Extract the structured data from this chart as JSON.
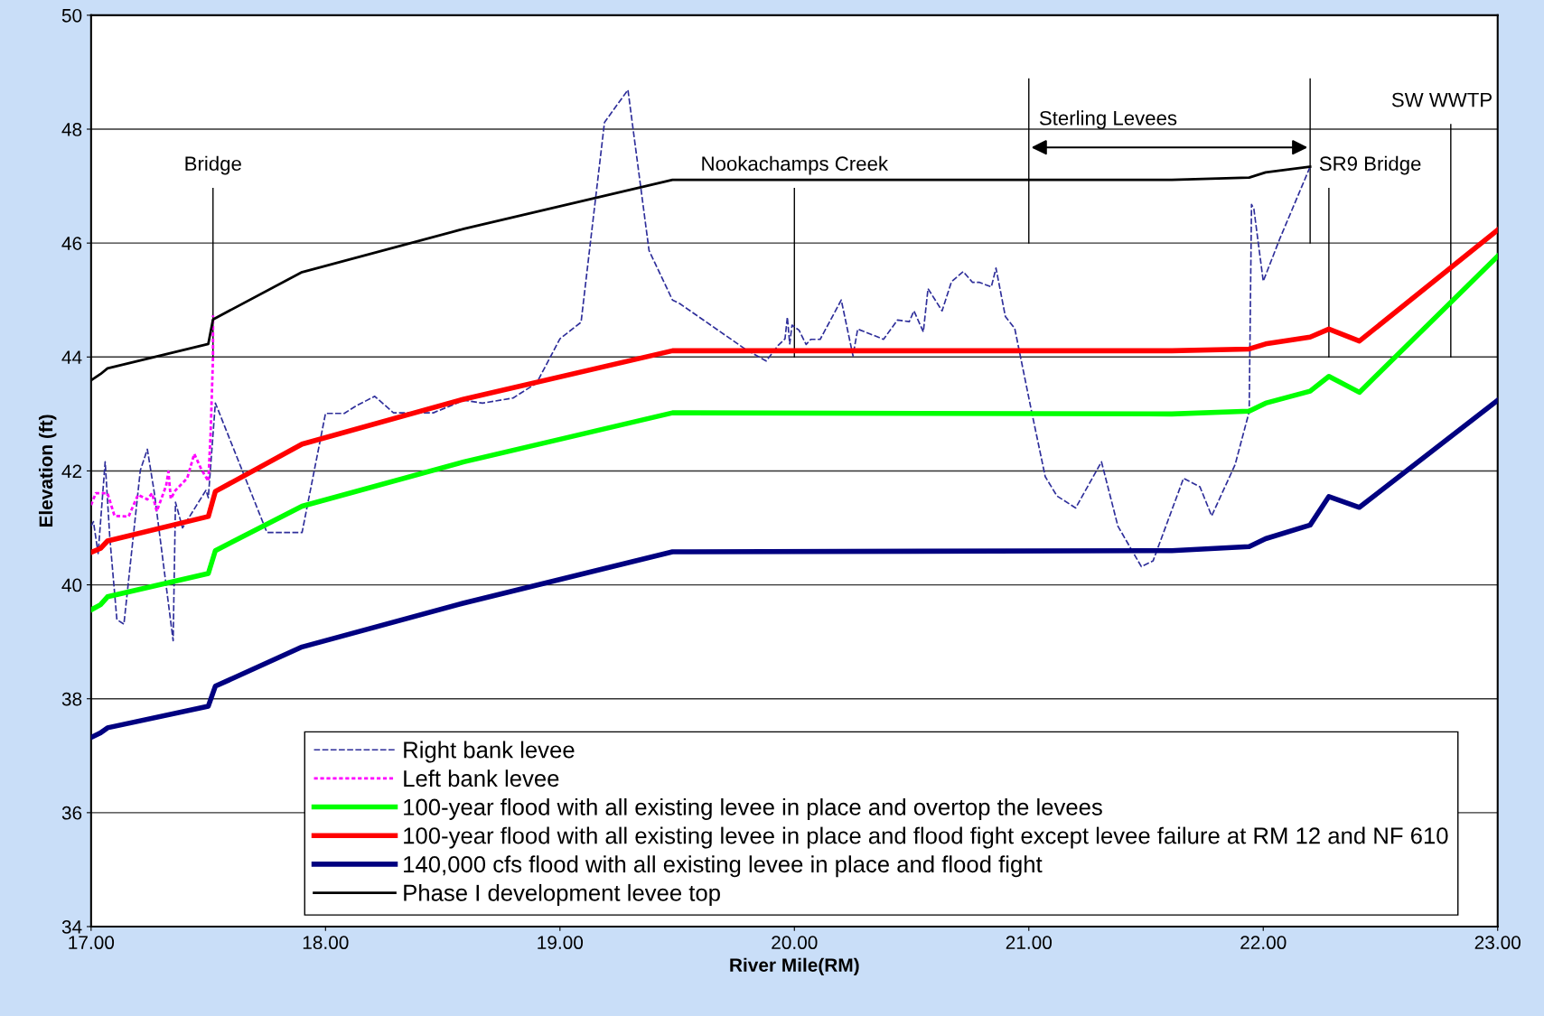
{
  "chart_data": {
    "type": "line",
    "xlabel": "River Mile(RM)",
    "ylabel": "Elevation (ft)",
    "xlim": [
      17,
      23
    ],
    "ylim": [
      34,
      50
    ],
    "xticks": [
      {
        "value": 17,
        "label": "17.00"
      },
      {
        "value": 18,
        "label": "18.00"
      },
      {
        "value": 19,
        "label": "19.00"
      },
      {
        "value": 20,
        "label": "20.00"
      },
      {
        "value": 21,
        "label": "21.00"
      },
      {
        "value": 22,
        "label": "22.00"
      },
      {
        "value": 23,
        "label": "23.00"
      }
    ],
    "yticks": [
      34,
      36,
      38,
      40,
      42,
      44,
      46,
      48,
      50
    ],
    "grid": "y",
    "legend": "bottom right",
    "marker": "none",
    "series": [
      {
        "name": "Right bank levee",
        "color": "#2e2e9a",
        "line_style": "dashed",
        "x": [
          17.0,
          17.01,
          17.03,
          17.06,
          17.08,
          17.11,
          17.14,
          17.21,
          17.24,
          17.27,
          17.35,
          17.36,
          17.39,
          17.49,
          17.5,
          17.53,
          17.54,
          17.75,
          17.9,
          18.0,
          18.08,
          18.13,
          18.21,
          18.29,
          18.46,
          18.59,
          18.67,
          18.8,
          18.9,
          19.0,
          19.09,
          19.19,
          19.29,
          19.38,
          19.48,
          19.51,
          19.79,
          19.88,
          19.93,
          19.96,
          19.97,
          19.98,
          19.99,
          20.02,
          20.05,
          20.07,
          20.11,
          20.2,
          20.25,
          20.27,
          20.32,
          20.38,
          20.44,
          20.49,
          20.51,
          20.55,
          20.57,
          20.63,
          20.67,
          20.72,
          20.76,
          20.79,
          20.84,
          20.86,
          20.9,
          20.94,
          21.01,
          21.07,
          21.12,
          21.2,
          21.31,
          21.38,
          21.48,
          21.53,
          21.66,
          21.73,
          21.78,
          21.88,
          21.94,
          21.95,
          21.96,
          22.0,
          22.07,
          22.2
        ],
        "values": [
          41.03,
          41.11,
          40.55,
          42.16,
          40.82,
          39.39,
          39.31,
          42.01,
          42.38,
          41.61,
          39.02,
          41.45,
          41.0,
          41.66,
          41.53,
          43.19,
          43.09,
          40.92,
          40.92,
          43.01,
          43.01,
          43.14,
          43.31,
          43.02,
          43.02,
          43.24,
          43.19,
          43.28,
          43.54,
          44.32,
          44.61,
          48.12,
          48.69,
          45.87,
          45.0,
          44.94,
          44.14,
          43.93,
          44.2,
          44.32,
          44.7,
          44.23,
          44.56,
          44.47,
          44.22,
          44.31,
          44.31,
          45.0,
          44.02,
          44.49,
          44.41,
          44.31,
          44.65,
          44.62,
          44.81,
          44.44,
          45.2,
          44.81,
          45.32,
          45.5,
          45.31,
          45.31,
          45.23,
          45.56,
          44.71,
          44.5,
          43.08,
          41.9,
          41.56,
          41.35,
          42.16,
          41.03,
          40.32,
          40.42,
          41.87,
          41.72,
          41.21,
          42.11,
          43.04,
          46.68,
          46.6,
          45.33,
          46.07,
          47.34
        ]
      },
      {
        "name": "Left bank levee",
        "color": "#ff00ff",
        "line_style": "dotted",
        "x": [
          17.0,
          17.02,
          17.07,
          17.1,
          17.16,
          17.2,
          17.24,
          17.26,
          17.28,
          17.32,
          17.33,
          17.34,
          17.36,
          17.41,
          17.44,
          17.47,
          17.5,
          17.51,
          17.52,
          17.52
        ],
        "values": [
          41.4,
          41.61,
          41.61,
          41.21,
          41.2,
          41.58,
          41.5,
          41.61,
          41.29,
          41.74,
          41.99,
          41.51,
          41.66,
          41.87,
          42.3,
          42.03,
          41.82,
          42.67,
          43.99,
          44.73
        ]
      },
      {
        "name": "100-year flood with all existing levee in place and overtop the levees",
        "color": "#00ff00",
        "line_style": "solid",
        "x": [
          17.0,
          17.04,
          17.07,
          17.5,
          17.53,
          17.9,
          18.59,
          19.48,
          21.61,
          21.94,
          22.01,
          22.2,
          22.28,
          22.41,
          23.0
        ],
        "values": [
          39.56,
          39.65,
          39.79,
          40.2,
          40.6,
          41.38,
          42.16,
          43.02,
          43.0,
          43.05,
          43.19,
          43.4,
          43.66,
          43.38,
          45.77
        ]
      },
      {
        "name": "100-year flood with all existing levee in place and flood fight except levee failure at RM 12 and NF 610",
        "color": "#ff0000",
        "line_style": "solid",
        "x": [
          17.0,
          17.04,
          17.07,
          17.5,
          17.53,
          17.9,
          18.59,
          19.48,
          21.61,
          21.94,
          22.01,
          22.2,
          22.28,
          22.41,
          23.0
        ],
        "values": [
          40.57,
          40.64,
          40.77,
          41.2,
          41.64,
          42.47,
          43.26,
          44.11,
          44.11,
          44.14,
          44.23,
          44.35,
          44.49,
          44.28,
          46.23
        ]
      },
      {
        "name": "140,000 cfs flood with all existing levee in place and flood fight",
        "color": "#000080",
        "line_style": "solid",
        "x": [
          17.0,
          17.04,
          17.07,
          17.5,
          17.53,
          17.9,
          18.59,
          19.48,
          21.61,
          21.94,
          22.01,
          22.2,
          22.28,
          22.41,
          23.0
        ],
        "values": [
          37.32,
          37.4,
          37.49,
          37.87,
          38.22,
          38.91,
          39.68,
          40.58,
          40.6,
          40.67,
          40.81,
          41.05,
          41.55,
          41.36,
          43.24
        ]
      },
      {
        "name": "Phase I development levee top",
        "color": "#000000",
        "line_style": "solid",
        "x": [
          17.0,
          17.04,
          17.07,
          17.5,
          17.52,
          17.9,
          18.59,
          19.48,
          21.61,
          21.94,
          22.01,
          22.2
        ],
        "values": [
          43.59,
          43.7,
          43.8,
          44.23,
          44.66,
          45.49,
          46.25,
          47.11,
          47.11,
          47.15,
          47.24,
          47.34
        ]
      }
    ],
    "ref_lines": [
      {
        "axis": "x",
        "value": 17.52,
        "label": "Bridge"
      },
      {
        "axis": "x",
        "value": 20.0,
        "label": "Nookachamps Creek"
      },
      {
        "axis": "x",
        "value": 21.0,
        "label": "Sterling Levees"
      },
      {
        "axis": "x",
        "value": 22.2,
        "label": null
      },
      {
        "axis": "x",
        "value": 22.28,
        "label": "SR9 Bridge"
      },
      {
        "axis": "x",
        "value": 22.8,
        "label": "SW WWTP"
      }
    ]
  }
}
